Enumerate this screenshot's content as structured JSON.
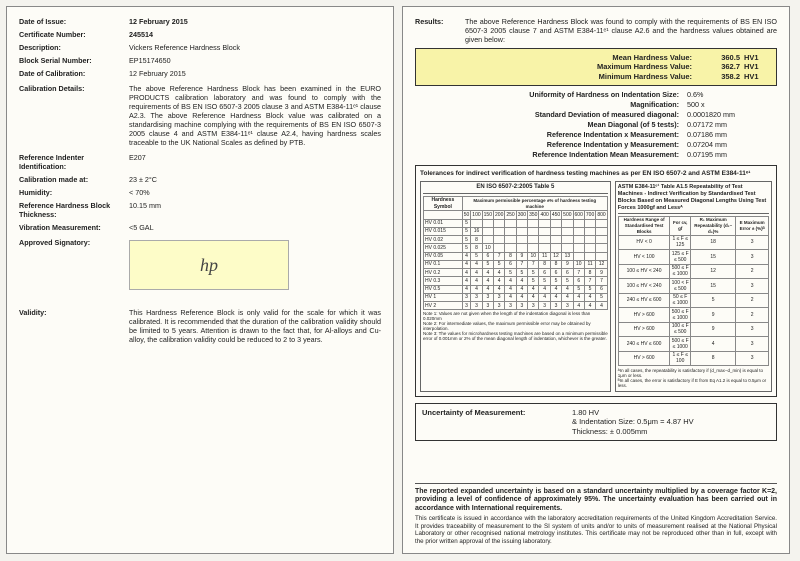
{
  "left": {
    "dateOfIssue": {
      "label": "Date of Issue:",
      "value": "12 February 2015"
    },
    "certNo": {
      "label": "Certificate Number:",
      "value": "245514"
    },
    "desc": {
      "label": "Description:",
      "value": "Vickers Reference Hardness Block"
    },
    "serial": {
      "label": "Block Serial Number:",
      "value": "EP15174650"
    },
    "dateCal": {
      "label": "Date of Calibration:",
      "value": "12 February 2015"
    },
    "calDetails": {
      "label": "Calibration Details:",
      "value": "The above Reference Hardness Block has been examined in the EURO PRODUCTS calibration laboratory and was found to comply with the requirements of BS EN ISO 6507-3 2005 clause 3 and ASTM E384-11ᵉ¹ clause A2.3. The above Reference Hardness Block value was calibrated on a standardising machine complying with the requirements of BS EN ISO 6507-3 2005 clause 4 and ASTM E384-11ᵉ¹ clause A2.4, having hardness scales traceable to the UK National Scales as defined by PTB."
    },
    "indenter": {
      "label": "Reference Indenter Identification:",
      "value": "E207"
    },
    "calAt": {
      "label": "Calibration made at:",
      "value": "23 ± 2°C"
    },
    "humidity": {
      "label": "Humidity:",
      "value": "< 70%"
    },
    "thickness": {
      "label": "Reference Hardness Block Thickness:",
      "value": "10.15 mm"
    },
    "vibration": {
      "label": "Vibration Measurement:",
      "value": "<5 GAL"
    },
    "signatory": {
      "label": "Approved Signatory:"
    },
    "validity": {
      "label": "Validity:",
      "value": "This Hardness Reference Block is only valid for the scale for which it was calibrated. It is recommended that the duration of the calibration validity should be limited to 5 years. Attention is drawn to the fact that, for Al-alloys and Cu-alloy, the calibration validity could be reduced to 2 to 3 years."
    }
  },
  "right": {
    "results": {
      "label": "Results:",
      "value": "The above Reference Hardness Block was found to comply with the requirements of BS EN ISO 6507-3 2005 clause 7 and ASTM E384-11ᵉ¹ clause A2.6 and the hardness values obtained are given below:"
    },
    "mean": {
      "label": "Mean Hardness Value:",
      "v": "360.5",
      "u": "HV1"
    },
    "max": {
      "label": "Maximum Hardness Value:",
      "v": "362.7",
      "u": "HV1"
    },
    "min": {
      "label": "Minimum Hardness Value:",
      "v": "358.2",
      "u": "HV1"
    },
    "uniformity": {
      "label": "Uniformity of Hardness on Indentation Size:",
      "value": "0.6%"
    },
    "mag": {
      "label": "Magnification:",
      "value": "500 x"
    },
    "stddev": {
      "label": "Standard Deviation of measured diagonal:",
      "value": "0.0001820 mm"
    },
    "meanDiag": {
      "label": "Mean Diagonal (of 5 tests):",
      "value": "0.07172 mm"
    },
    "refX": {
      "label": "Reference Indentation x Measurement:",
      "value": "0.07186 mm"
    },
    "refY": {
      "label": "Reference Indentation y Measurement:",
      "value": "0.07204 mm"
    },
    "refMean": {
      "label": "Reference Indentation Mean Measurement:",
      "value": "0.07195 mm"
    },
    "tolTitle": "Tolerances for indirect verification of hardness testing machines as per EN ISO 6507-2 and ASTM E384-11ᵉ¹",
    "tolLeftHead": "EN ISO 6507-2:2005 Table 5",
    "tolRightHead": "ASTM E384-11ᵉ¹ Table A1.5 Repeatability of Test Machines - Indirect Verification by Standardised Test Blocks Based on Measured Diagonal Lengths Using Test Forces 1000gf and Lessᴬ",
    "leftTable": {
      "rows": [
        "HV 0.01",
        "HV 0.015",
        "HV 0.02",
        "HV 0.025",
        "HV 0.05",
        "HV 0.1",
        "HV 0.2",
        "HV 0.3",
        "HV 0.5",
        "HV 1",
        "HV 2"
      ]
    },
    "rightTable": {
      "head": [
        "Hardness Range of Standardised Test Blocks",
        "For cv, gf",
        "R₁ Maximum Repeatability (d₁–d₅)%",
        "E Maximum Error ± (%)ᴮ"
      ],
      "rows": [
        [
          "HV < 0",
          "1 ≤ F ≤ 125",
          "18",
          "3"
        ],
        [
          "HV < 100",
          "125 ≤ F ≤ 500",
          "15",
          "3"
        ],
        [
          "100 ≤ HV < 240",
          "500 ≤ F ≤ 1000",
          "12",
          "2"
        ],
        [
          "100 ≤ HV < 240",
          "100 < F ≤ 500",
          "15",
          "3"
        ],
        [
          "240 ≤ HV ≤ 600",
          "50 ≤ F ≤ 1000",
          "5",
          "2"
        ],
        [
          "HV > 600",
          "500 ≤ F ≤ 1000",
          "9",
          "2"
        ],
        [
          "HV > 600",
          "100 ≤ F ≤ 500",
          "9",
          "3"
        ],
        [
          "240 ≤ HV ≤ 600",
          "500 ≤ F ≤ 1000",
          "4",
          "3"
        ],
        [
          "HV > 600",
          "1 ≤ F ≤ 100",
          "8",
          "3"
        ]
      ]
    },
    "notes": {
      "n1": "Note 1: Values are not given when the length of the indentation diagonal is less than 0.020mm",
      "n2": "Note 2: For intermediate values, the maximum permissible error may be obtained by interpolation.",
      "n3": "Note 3: The values for microhardness testing machines are based on a minimum permissible error of 0.001mm or 2% of the mean diagonal length of indentation, whichever is the greater.",
      "a1": "ᴬIn all cases, the repeatability is satisfactory if (d_max−d_min) is equal to 1μm or less.",
      "a2": "ᴮIn all cases, the error is satisfactory if E from Eq A1.2 is equal to 0.5μm or less."
    },
    "unc": {
      "label": "Uncertainty of Measurement:",
      "line1": "1.80 HV",
      "line2": "& Indentation Size: 0.5μm = 4.87 HV",
      "line3": "Thickness:  ± 0.005mm"
    },
    "footerBold": "The reported expanded uncertainty is based on a standard uncertainty multiplied by a coverage factor K=2, providing a level of confidence of approximately 95%. The uncertainty evaluation has been carried out in accordance with International requirements.",
    "footerSmall": "This certificate is issued in accordance with the laboratory accreditation requirements of the United Kingdom Accreditation Service. It provides traceability of measurement to the SI system of units and/or to units of measurement realised at the National Physical Laboratory or other recognised national metrology institutes. This certificate may not be reproduced other than in full, except with the prior written approval of the issuing laboratory."
  }
}
